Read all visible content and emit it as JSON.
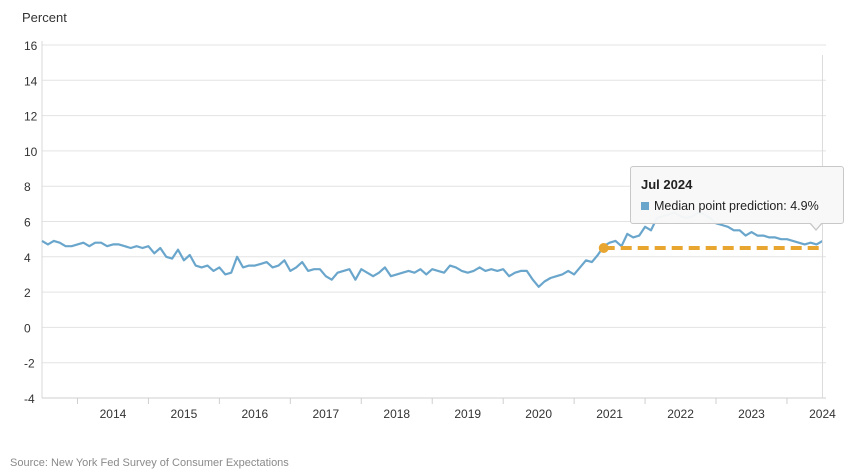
{
  "chart_data": {
    "type": "line",
    "ylabel": "Percent",
    "ylim": [
      -4,
      16
    ],
    "yticks": [
      16,
      14,
      12,
      10,
      8,
      6,
      4,
      2,
      0,
      -2,
      -4
    ],
    "xlim": [
      2013.5,
      2024.55
    ],
    "xticks": [
      "2014",
      "2015",
      "2016",
      "2017",
      "2018",
      "2019",
      "2020",
      "2021",
      "2022",
      "2023",
      "2024"
    ],
    "grid": true,
    "series": [
      {
        "name": "Median point prediction",
        "color": "#6aa6cc",
        "x": [
          2013.5,
          2013.583,
          2013.667,
          2013.75,
          2013.833,
          2013.917,
          2014.0,
          2014.083,
          2014.167,
          2014.25,
          2014.333,
          2014.417,
          2014.5,
          2014.583,
          2014.667,
          2014.75,
          2014.833,
          2014.917,
          2015.0,
          2015.083,
          2015.167,
          2015.25,
          2015.333,
          2015.417,
          2015.5,
          2015.583,
          2015.667,
          2015.75,
          2015.833,
          2015.917,
          2016.0,
          2016.083,
          2016.167,
          2016.25,
          2016.333,
          2016.417,
          2016.5,
          2016.583,
          2016.667,
          2016.75,
          2016.833,
          2016.917,
          2017.0,
          2017.083,
          2017.167,
          2017.25,
          2017.333,
          2017.417,
          2017.5,
          2017.583,
          2017.667,
          2017.75,
          2017.833,
          2017.917,
          2018.0,
          2018.083,
          2018.167,
          2018.25,
          2018.333,
          2018.417,
          2018.5,
          2018.583,
          2018.667,
          2018.75,
          2018.833,
          2018.917,
          2019.0,
          2019.083,
          2019.167,
          2019.25,
          2019.333,
          2019.417,
          2019.5,
          2019.583,
          2019.667,
          2019.75,
          2019.833,
          2019.917,
          2020.0,
          2020.083,
          2020.167,
          2020.25,
          2020.333,
          2020.417,
          2020.5,
          2020.583,
          2020.667,
          2020.75,
          2020.833,
          2020.917,
          2021.0,
          2021.083,
          2021.167,
          2021.25,
          2021.333,
          2021.417,
          2021.5,
          2021.583,
          2021.667,
          2021.75,
          2021.833,
          2021.917,
          2022.0,
          2022.083,
          2022.167,
          2022.25,
          2022.333,
          2022.417,
          2022.5,
          2022.583,
          2022.667,
          2022.75,
          2022.833,
          2022.917,
          2023.0,
          2023.083,
          2023.167,
          2023.25,
          2023.333,
          2023.417,
          2023.5,
          2023.583,
          2023.667,
          2023.75,
          2023.833,
          2023.917,
          2024.0,
          2024.083,
          2024.167,
          2024.25,
          2024.333,
          2024.417,
          2024.5
        ],
        "y": [
          4.9,
          4.7,
          4.9,
          4.8,
          4.6,
          4.6,
          4.7,
          4.8,
          4.6,
          4.8,
          4.8,
          4.6,
          4.7,
          4.7,
          4.6,
          4.5,
          4.6,
          4.5,
          4.6,
          4.2,
          4.5,
          4.0,
          3.9,
          4.4,
          3.8,
          4.1,
          3.5,
          3.4,
          3.5,
          3.2,
          3.4,
          3.0,
          3.1,
          4.0,
          3.4,
          3.5,
          3.5,
          3.6,
          3.7,
          3.4,
          3.5,
          3.8,
          3.2,
          3.4,
          3.7,
          3.2,
          3.3,
          3.3,
          2.9,
          2.7,
          3.1,
          3.2,
          3.3,
          2.7,
          3.3,
          3.1,
          2.9,
          3.1,
          3.4,
          2.9,
          3.0,
          3.1,
          3.2,
          3.1,
          3.3,
          3.0,
          3.3,
          3.2,
          3.1,
          3.5,
          3.4,
          3.2,
          3.1,
          3.2,
          3.4,
          3.2,
          3.3,
          3.2,
          3.3,
          2.9,
          3.1,
          3.2,
          3.2,
          2.7,
          2.3,
          2.6,
          2.8,
          2.9,
          3.0,
          3.2,
          3.0,
          3.4,
          3.8,
          3.7,
          4.1,
          4.6,
          4.8,
          4.9,
          4.6,
          5.3,
          5.1,
          5.2,
          5.7,
          5.5,
          6.2,
          6.3,
          6.4,
          6.5,
          6.3,
          6.2,
          6.3,
          6.5,
          6.4,
          6.2,
          5.9,
          5.8,
          5.7,
          5.5,
          5.5,
          5.2,
          5.4,
          5.2,
          5.2,
          5.1,
          5.1,
          5.0,
          5.0,
          4.9,
          4.8,
          4.7,
          4.8,
          4.7,
          4.9
        ]
      },
      {
        "type": "dashed-reference",
        "color": "#e8a530",
        "x": [
          2021.417,
          2024.5
        ],
        "y": [
          4.5,
          4.5
        ]
      }
    ],
    "tooltip": {
      "title": "Jul 2024",
      "label": "Median point prediction: 4.9%",
      "swatch_color": "#6aa6cc",
      "x": 2024.5
    },
    "source": "Source: New York Fed Survey of Consumer Expectations"
  }
}
